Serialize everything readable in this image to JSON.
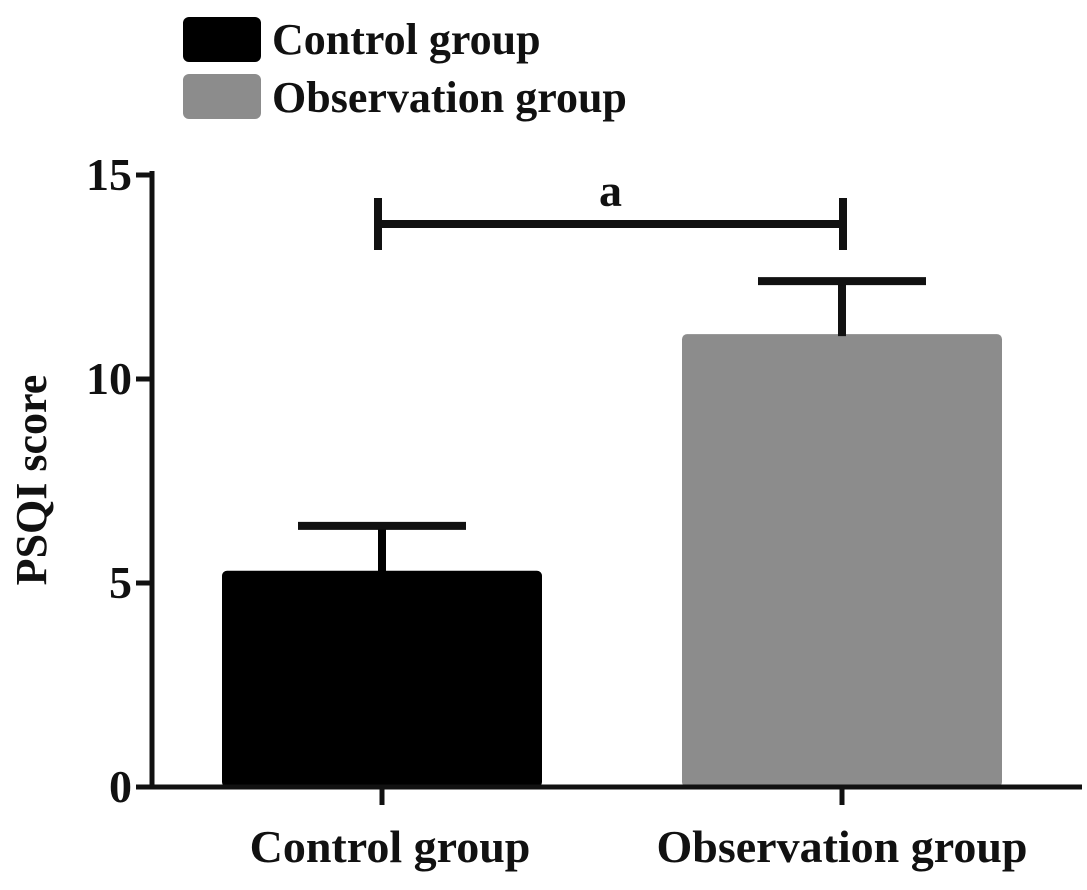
{
  "chart_data": {
    "type": "bar",
    "title": "",
    "xlabel": "",
    "ylabel": "PSQI score",
    "categories": [
      "Control group",
      "Observation group"
    ],
    "values": [
      5.3,
      11.1
    ],
    "errors": [
      1.1,
      1.3
    ],
    "ylim": [
      0,
      15
    ],
    "yticks": [
      0,
      5,
      10,
      15
    ],
    "grid": false,
    "legend": {
      "position": "top-left",
      "entries": [
        {
          "label": "Control group",
          "color": "#000000"
        },
        {
          "label": "Observation group",
          "color": "#8c8c8c"
        }
      ]
    },
    "annotations": [
      {
        "type": "significance-bracket",
        "label": "a",
        "from": "Control group",
        "to": "Observation group",
        "y": 13.8
      }
    ],
    "colors": [
      "#000000",
      "#8c8c8c"
    ]
  }
}
